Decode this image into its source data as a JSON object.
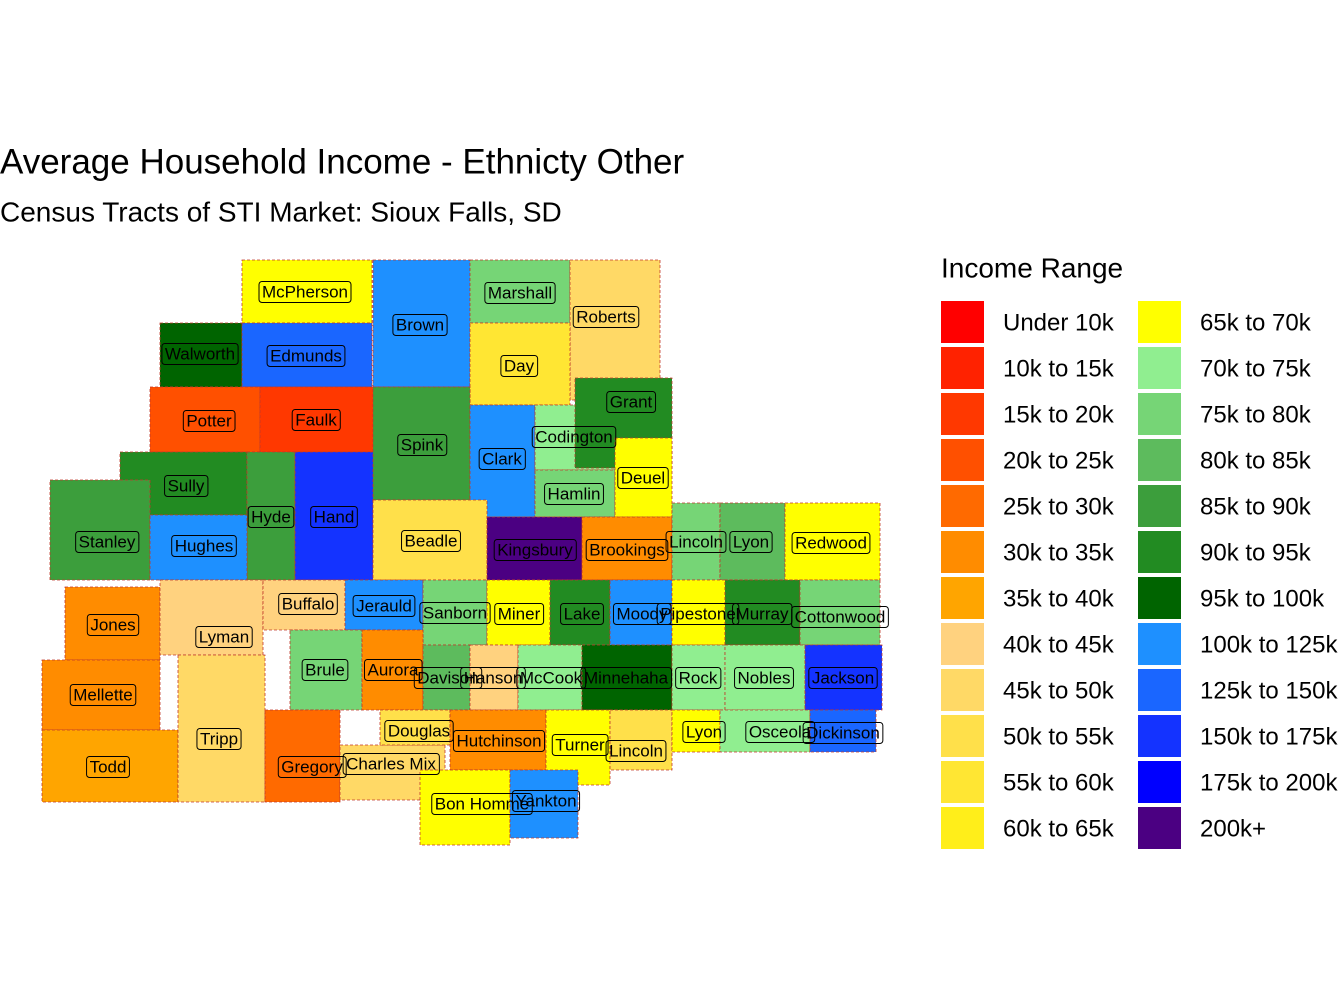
{
  "title": "Average Household Income - Ethnicty Other",
  "subtitle": "Census Tracts of STI Market: Sioux Falls, SD",
  "legend": {
    "title": "Income Range",
    "items": [
      {
        "label": "Under 10k",
        "color": "#FF0000"
      },
      {
        "label": "10k to 15k",
        "color": "#FF2200"
      },
      {
        "label": "15k to 20k",
        "color": "#FF3800"
      },
      {
        "label": "20k to 25k",
        "color": "#FF5000"
      },
      {
        "label": "25k to 30k",
        "color": "#FF6A00"
      },
      {
        "label": "30k to 35k",
        "color": "#FF8C00"
      },
      {
        "label": "35k to 40k",
        "color": "#FFA500"
      },
      {
        "label": "40k to 45k",
        "color": "#FFD27F"
      },
      {
        "label": "45k to 50k",
        "color": "#FFD966"
      },
      {
        "label": "50k to 55k",
        "color": "#FFE04A"
      },
      {
        "label": "55k to 60k",
        "color": "#FFE633"
      },
      {
        "label": "60k to 65k",
        "color": "#FFEE1A"
      },
      {
        "label": "65k to 70k",
        "color": "#FFFF00"
      },
      {
        "label": "70k to 75k",
        "color": "#90EE90"
      },
      {
        "label": "75k to 80k",
        "color": "#76D576"
      },
      {
        "label": "80k to 85k",
        "color": "#5DBB5D"
      },
      {
        "label": "85k to 90k",
        "color": "#3C9E3C"
      },
      {
        "label": "90k to 95k",
        "color": "#228B22"
      },
      {
        "label": "95k to 100k",
        "color": "#006400"
      },
      {
        "label": "100k to 125k",
        "color": "#1E90FF"
      },
      {
        "label": "125k to 150k",
        "color": "#1A66FF"
      },
      {
        "label": "150k to 175k",
        "color": "#1433FF"
      },
      {
        "label": "175k to 200k",
        "color": "#0000FF"
      },
      {
        "label": "200k+",
        "color": "#4B0082"
      }
    ]
  },
  "counties": [
    {
      "name": "McPherson",
      "color": "#FFFF00"
    },
    {
      "name": "Brown",
      "color": "#1E90FF"
    },
    {
      "name": "Marshall",
      "color": "#76D576"
    },
    {
      "name": "Roberts",
      "color": "#FFD966"
    },
    {
      "name": "Walworth",
      "color": "#006400"
    },
    {
      "name": "Edmunds",
      "color": "#1A66FF"
    },
    {
      "name": "Day",
      "color": "#FFE633"
    },
    {
      "name": "Potter",
      "color": "#FF5000"
    },
    {
      "name": "Faulk",
      "color": "#FF3800"
    },
    {
      "name": "Spink",
      "color": "#3C9E3C"
    },
    {
      "name": "Clark",
      "color": "#1E90FF"
    },
    {
      "name": "Codington",
      "color": "#90EE90"
    },
    {
      "name": "Grant",
      "color": "#228B22"
    },
    {
      "name": "Sully",
      "color": "#228B22"
    },
    {
      "name": "Hyde",
      "color": "#3C9E3C"
    },
    {
      "name": "Hand",
      "color": "#1433FF"
    },
    {
      "name": "Hamlin",
      "color": "#76D576"
    },
    {
      "name": "Deuel",
      "color": "#FFFF00"
    },
    {
      "name": "Stanley",
      "color": "#3C9E3C"
    },
    {
      "name": "Hughes",
      "color": "#1E90FF"
    },
    {
      "name": "Beadle",
      "color": "#FFE04A"
    },
    {
      "name": "Kingsbury",
      "color": "#4B0082"
    },
    {
      "name": "Brookings",
      "color": "#FF8C00"
    },
    {
      "name": "Lincoln",
      "color": "#76D576"
    },
    {
      "name": "Lyon",
      "color": "#5DBB5D"
    },
    {
      "name": "Redwood",
      "color": "#FFFF00"
    },
    {
      "name": "Jones",
      "color": "#FF8C00"
    },
    {
      "name": "Lyman",
      "color": "#FFD27F"
    },
    {
      "name": "Buffalo",
      "color": "#FFD27F"
    },
    {
      "name": "Jerauld",
      "color": "#1E90FF"
    },
    {
      "name": "Sanborn",
      "color": "#76D576"
    },
    {
      "name": "Miner",
      "color": "#FFFF00"
    },
    {
      "name": "Lake",
      "color": "#228B22"
    },
    {
      "name": "Moody",
      "color": "#1E90FF"
    },
    {
      "name": "Pipestone",
      "color": "#FFFF00"
    },
    {
      "name": "Murray",
      "color": "#228B22"
    },
    {
      "name": "Cottonwood",
      "color": "#76D576"
    },
    {
      "name": "Mellette",
      "color": "#FF8C00"
    },
    {
      "name": "Brule",
      "color": "#76D576"
    },
    {
      "name": "Aurora",
      "color": "#FF8C00"
    },
    {
      "name": "Davison",
      "color": "#5DBB5D"
    },
    {
      "name": "Hanson",
      "color": "#FFD27F"
    },
    {
      "name": "McCook",
      "color": "#90EE90"
    },
    {
      "name": "Minnehaha",
      "color": "#006400"
    },
    {
      "name": "Rock",
      "color": "#90EE90"
    },
    {
      "name": "Nobles",
      "color": "#90EE90"
    },
    {
      "name": "Jackson",
      "color": "#1433FF"
    },
    {
      "name": "Todd",
      "color": "#FFA500"
    },
    {
      "name": "Tripp",
      "color": "#FFD966"
    },
    {
      "name": "Gregory",
      "color": "#FF6A00"
    },
    {
      "name": "Charles Mix",
      "color": "#FFD966"
    },
    {
      "name": "Douglas",
      "color": "#FFE04A"
    },
    {
      "name": "Hutchinson",
      "color": "#FF8C00"
    },
    {
      "name": "Turner",
      "color": "#FFFF00"
    },
    {
      "name": "Lincoln",
      "color": "#FFE04A"
    },
    {
      "name": "Lyon",
      "color": "#FFFF00"
    },
    {
      "name": "Osceola",
      "color": "#90EE90"
    },
    {
      "name": "Dickinson",
      "color": "#1A66FF"
    },
    {
      "name": "Bon Homme",
      "color": "#FFFF00"
    },
    {
      "name": "Yankton",
      "color": "#1E90FF"
    }
  ]
}
